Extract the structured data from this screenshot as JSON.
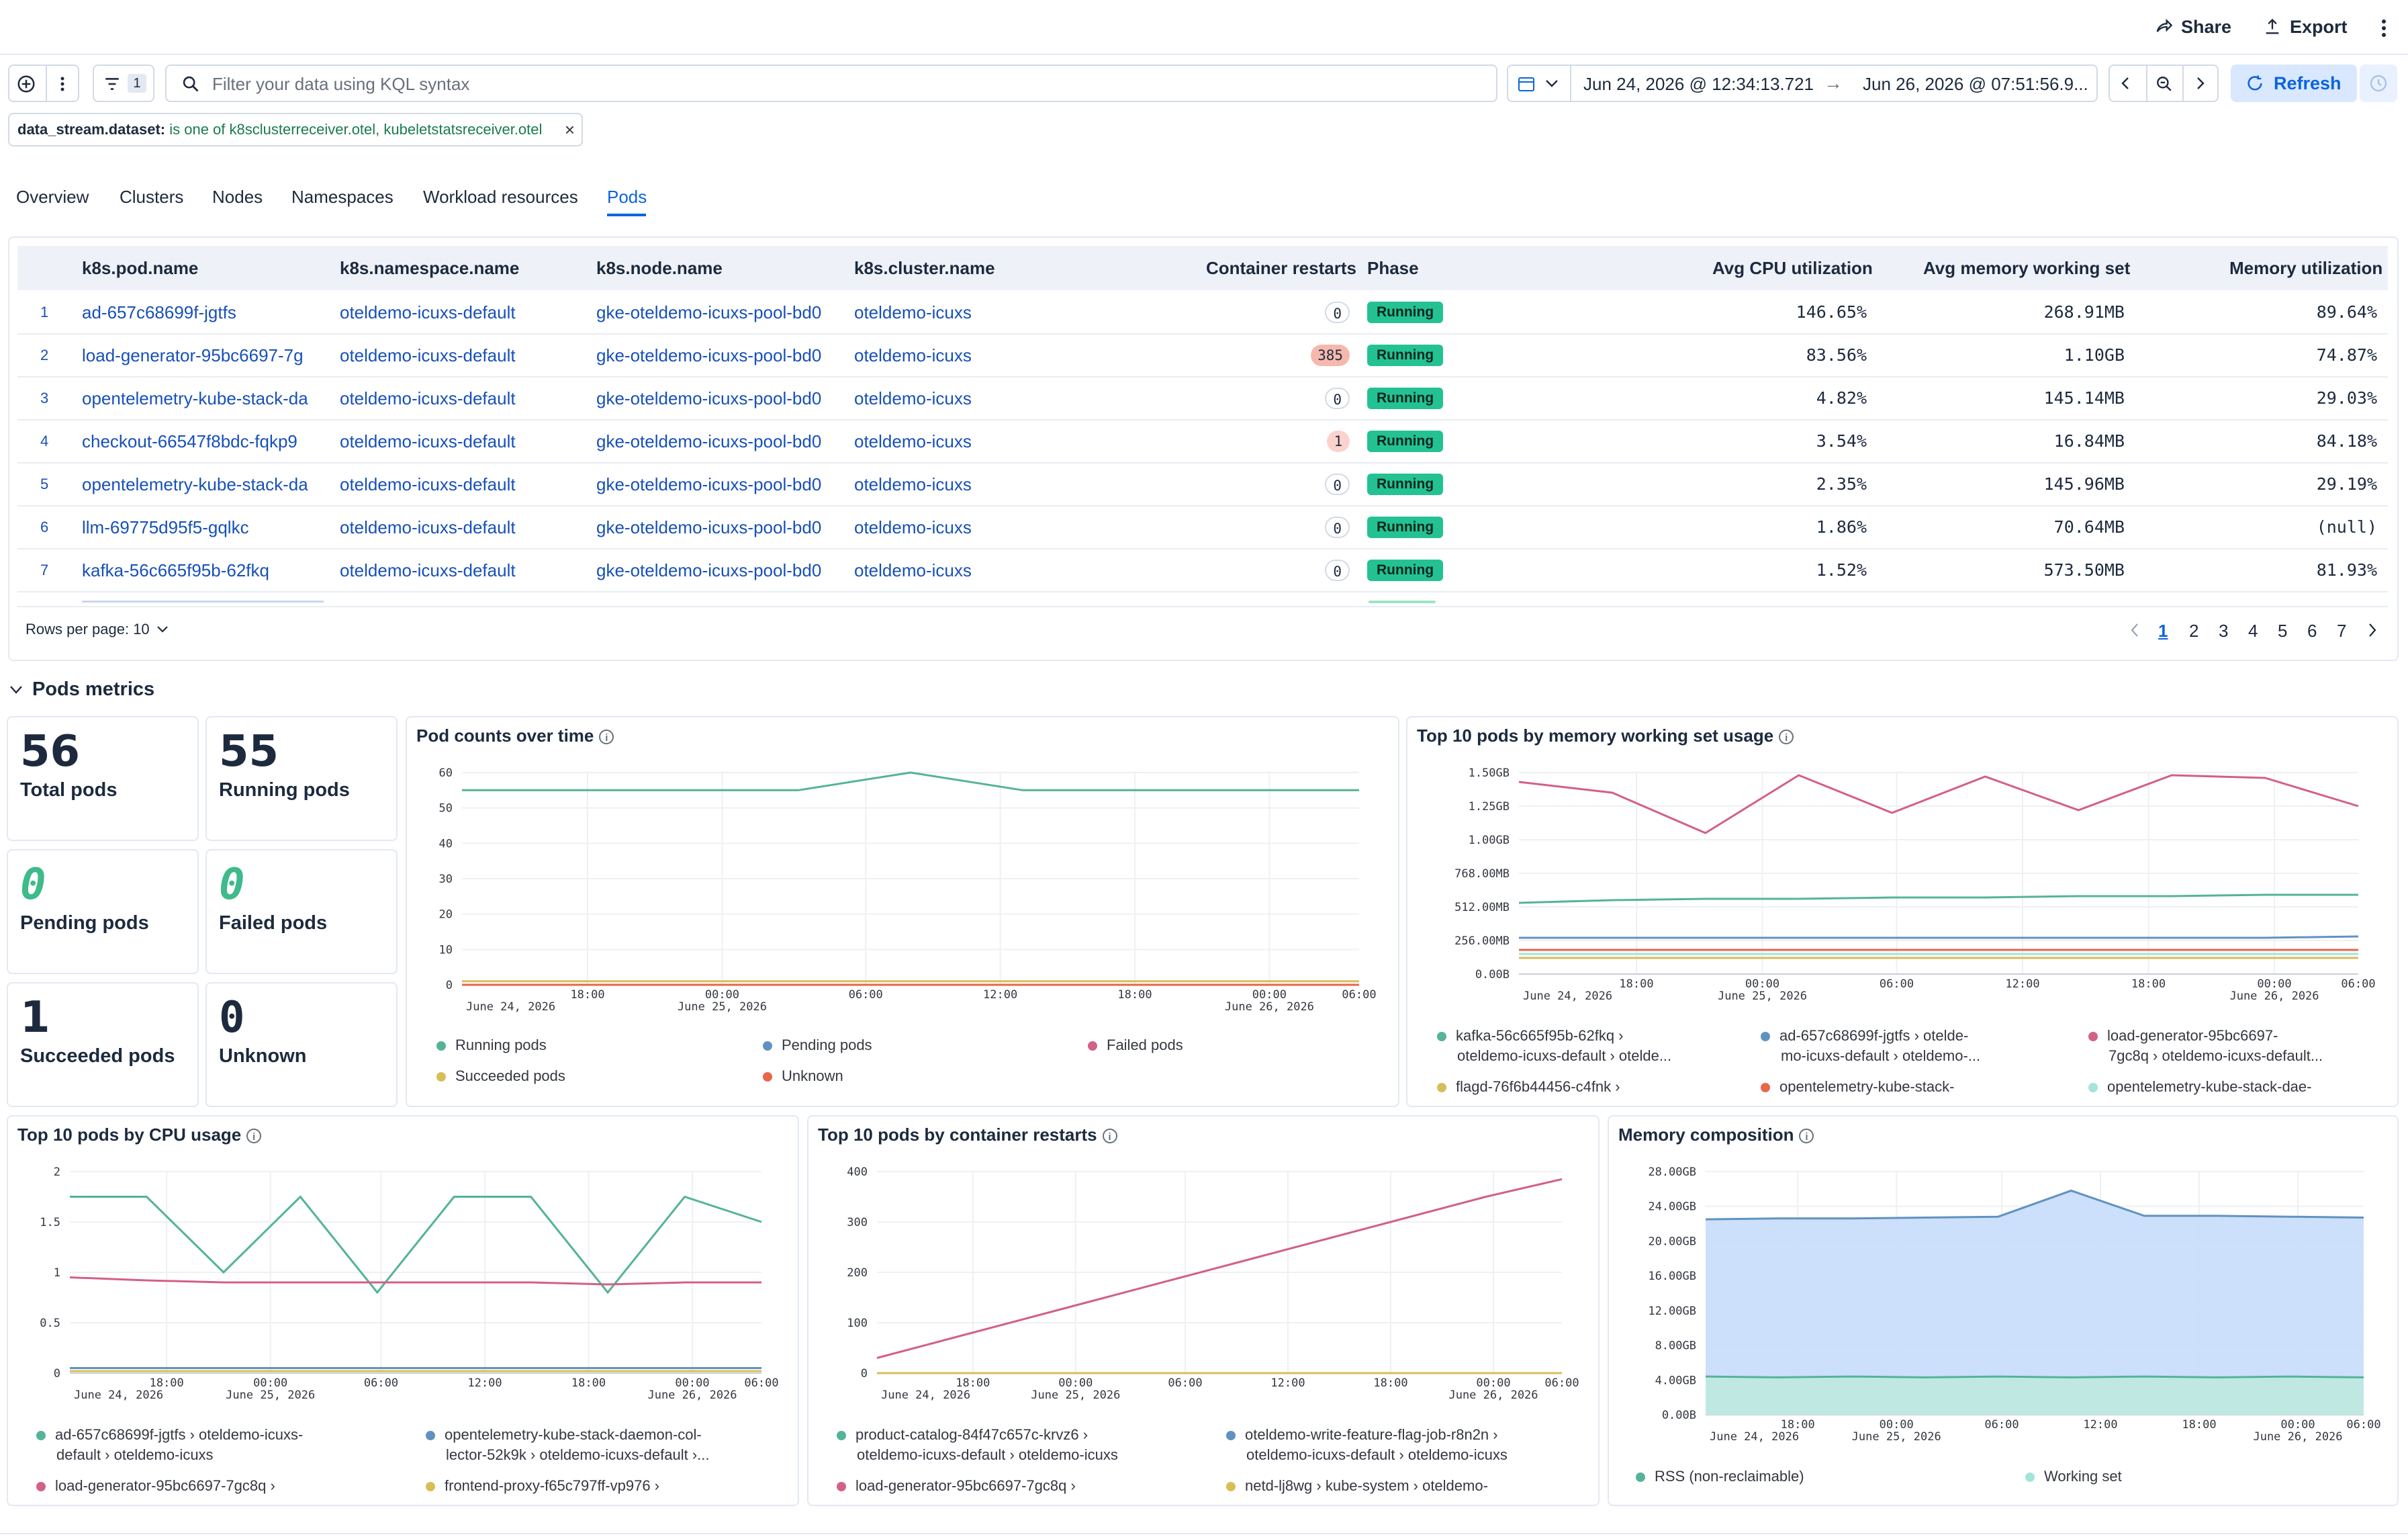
{
  "header": {
    "share": "Share",
    "export": "Export"
  },
  "filterbar": {
    "filter_count": "1",
    "search_placeholder": "Filter your data using KQL syntax",
    "date_start": "Jun 24, 2026 @ 12:34:13.721",
    "date_end": "Jun 26, 2026 @ 07:51:56.9...",
    "refresh": "Refresh",
    "pill_field": "data_stream.dataset:",
    "pill_value": "is one of k8sclusterreceiver.otel, kubeletstatsreceiver.otel"
  },
  "tabs": [
    "Overview",
    "Clusters",
    "Nodes",
    "Namespaces",
    "Workload resources",
    "Pods"
  ],
  "table": {
    "columns": [
      "k8s.pod.name",
      "k8s.namespace.name",
      "k8s.node.name",
      "k8s.cluster.name",
      "Container restarts",
      "Phase",
      "Avg CPU utilization",
      "Avg memory working set",
      "Memory utilization"
    ],
    "rows": [
      {
        "n": "1",
        "pod": "ad-657c68699f-jgtfs",
        "ns": "oteldemo-icuxs-default",
        "node": "gke-oteldemo-icuxs-pool-bd0",
        "cluster": "oteldemo-icuxs",
        "restarts": "0",
        "phase": "Running",
        "cpu": "146.65%",
        "mem": "268.91MB",
        "memu": "89.64%"
      },
      {
        "n": "2",
        "pod": "load-generator-95bc6697-7g",
        "ns": "oteldemo-icuxs-default",
        "node": "gke-oteldemo-icuxs-pool-bd0",
        "cluster": "oteldemo-icuxs",
        "restarts": "385",
        "phase": "Running",
        "cpu": "83.56%",
        "mem": "1.10GB",
        "memu": "74.87%"
      },
      {
        "n": "3",
        "pod": "opentelemetry-kube-stack-da",
        "ns": "oteldemo-icuxs-default",
        "node": "gke-oteldemo-icuxs-pool-bd0",
        "cluster": "oteldemo-icuxs",
        "restarts": "0",
        "phase": "Running",
        "cpu": "4.82%",
        "mem": "145.14MB",
        "memu": "29.03%"
      },
      {
        "n": "4",
        "pod": "checkout-66547f8bdc-fqkp9",
        "ns": "oteldemo-icuxs-default",
        "node": "gke-oteldemo-icuxs-pool-bd0",
        "cluster": "oteldemo-icuxs",
        "restarts": "1",
        "phase": "Running",
        "cpu": "3.54%",
        "mem": "16.84MB",
        "memu": "84.18%"
      },
      {
        "n": "5",
        "pod": "opentelemetry-kube-stack-da",
        "ns": "oteldemo-icuxs-default",
        "node": "gke-oteldemo-icuxs-pool-bd0",
        "cluster": "oteldemo-icuxs",
        "restarts": "0",
        "phase": "Running",
        "cpu": "2.35%",
        "mem": "145.96MB",
        "memu": "29.19%"
      },
      {
        "n": "6",
        "pod": "llm-69775d95f5-gqlkc",
        "ns": "oteldemo-icuxs-default",
        "node": "gke-oteldemo-icuxs-pool-bd0",
        "cluster": "oteldemo-icuxs",
        "restarts": "0",
        "phase": "Running",
        "cpu": "1.86%",
        "mem": "70.64MB",
        "memu": "(null)"
      },
      {
        "n": "7",
        "pod": "kafka-56c665f95b-62fkq",
        "ns": "oteldemo-icuxs-default",
        "node": "gke-oteldemo-icuxs-pool-bd0",
        "cluster": "oteldemo-icuxs",
        "restarts": "0",
        "phase": "Running",
        "cpu": "1.52%",
        "mem": "573.50MB",
        "memu": "81.93%"
      }
    ],
    "rows_per_page": "Rows per page: 10",
    "pages": [
      "1",
      "2",
      "3",
      "4",
      "5",
      "6",
      "7"
    ]
  },
  "metrics": {
    "section_title": "Pods metrics",
    "stats": [
      {
        "value": "56",
        "label": "Total pods"
      },
      {
        "value": "55",
        "label": "Running pods"
      },
      {
        "value": "0",
        "label": "Pending pods"
      },
      {
        "value": "0",
        "label": "Failed pods"
      },
      {
        "value": "1",
        "label": "Succeeded pods"
      },
      {
        "value": "0",
        "label": "Unknown"
      }
    ]
  },
  "x_ticks": [
    "June 24, 2026",
    "18:00",
    "00:00",
    "June 25, 2026",
    "06:00",
    "12:00",
    "18:00",
    "00:00",
    "June 26, 2026",
    "06:00"
  ],
  "chart_data": [
    {
      "type": "line",
      "title": "Pod counts over time",
      "ylim": [
        0,
        60
      ],
      "y_ticks": [
        "0",
        "10",
        "20",
        "30",
        "40",
        "50",
        "60"
      ],
      "x": [
        "June 24 12:34",
        "June 24 18:00",
        "June 25 00:00",
        "June 25 06:00",
        "June 25 10:00",
        "June 25 12:00",
        "June 25 18:00",
        "June 26 00:00",
        "June 26 07:51"
      ],
      "series": [
        {
          "name": "Running pods",
          "color": "#54b399",
          "values": [
            55,
            55,
            55,
            55,
            60,
            55,
            55,
            55,
            55
          ]
        },
        {
          "name": "Pending pods",
          "color": "#6092c0",
          "values": [
            0,
            0,
            0,
            0,
            0,
            0,
            0,
            0,
            0
          ]
        },
        {
          "name": "Failed pods",
          "color": "#d36086",
          "values": [
            0,
            0,
            0,
            0,
            0,
            0,
            0,
            0,
            0
          ]
        },
        {
          "name": "Succeeded pods",
          "color": "#d6bf57",
          "values": [
            1,
            1,
            1,
            1,
            1,
            1,
            1,
            1,
            1
          ]
        },
        {
          "name": "Unknown",
          "color": "#e7664c",
          "values": [
            0,
            0,
            0,
            0,
            0,
            0,
            0,
            0,
            0
          ]
        }
      ],
      "legend": [
        "Running pods",
        "Pending pods",
        "Failed pods",
        "Succeeded pods",
        "Unknown"
      ]
    },
    {
      "type": "line",
      "title": "Top 10 pods by memory working set usage",
      "y_ticks": [
        "0.00B",
        "256.00MB",
        "512.00MB",
        "768.00MB",
        "1.00GB",
        "1.25GB",
        "1.50GB"
      ],
      "series": [
        {
          "name": "kafka-56c665f95b-62fkq › oteldemo-icuxs-default › otelde...",
          "color": "#54b399",
          "values": [
            0.53,
            0.55,
            0.56,
            0.56,
            0.57,
            0.57,
            0.58,
            0.58,
            0.59,
            0.59
          ]
        },
        {
          "name": "ad-657c68699f-jgtfs › oteldemo-icuxs-default › oteldemo-...",
          "color": "#6092c0",
          "values": [
            0.27,
            0.27,
            0.27,
            0.27,
            0.27,
            0.27,
            0.27,
            0.27,
            0.27,
            0.28
          ]
        },
        {
          "name": "load-generator-95bc6697-7gc8q › oteldemo-icuxs-default...",
          "color": "#d36086",
          "values": [
            1.43,
            1.35,
            1.05,
            1.48,
            1.2,
            1.47,
            1.22,
            1.48,
            1.46,
            1.25
          ]
        },
        {
          "name": "flagd-76f6b44456-c4fnk ›",
          "color": "#d6bf57",
          "values": [
            0.12,
            0.12,
            0.12,
            0.12,
            0.12,
            0.12,
            0.12,
            0.12,
            0.12,
            0.12
          ]
        },
        {
          "name": "opentelemetry-kube-stack-",
          "color": "#e7664c",
          "values": [
            0.18,
            0.18,
            0.18,
            0.18,
            0.18,
            0.18,
            0.18,
            0.18,
            0.18,
            0.18
          ]
        },
        {
          "name": "opentelemetry-kube-stack-dae-",
          "color": "#a3e5d8",
          "values": [
            0.15,
            0.15,
            0.15,
            0.15,
            0.15,
            0.15,
            0.15,
            0.15,
            0.15,
            0.15
          ]
        }
      ],
      "legend": [
        "kafka-56c665f95b-62fkq ›",
        "oteldemo-icuxs-default › otelde...",
        "ad-657c68699f-jgtfs › otelde-",
        "mo-icuxs-default › oteldemo-...",
        "load-generator-95bc6697-",
        "7gc8q › oteldemo-icuxs-default...",
        "flagd-76f6b44456-c4fnk ›",
        "opentelemetry-kube-stack-",
        "opentelemetry-kube-stack-dae-"
      ]
    },
    {
      "type": "line",
      "title": "Top 10 pods by CPU usage",
      "ylim": [
        0,
        2
      ],
      "y_ticks": [
        "0",
        "0.5",
        "1",
        "1.5",
        "2"
      ],
      "series": [
        {
          "name": "ad-657c68699f-jgtfs › oteldemo-icuxs-default › oteldemo-icuxs",
          "color": "#54b399",
          "values": [
            1.75,
            1.75,
            1.0,
            1.75,
            0.8,
            1.75,
            1.75,
            0.8,
            1.75,
            1.5
          ]
        },
        {
          "name": "opentelemetry-kube-stack-daemon-collector-52k9k › oteldemo-icuxs-default ›...",
          "color": "#6092c0",
          "values": [
            0.05,
            0.05,
            0.05,
            0.05,
            0.05,
            0.05,
            0.05,
            0.05,
            0.05,
            0.05
          ]
        },
        {
          "name": "load-generator-95bc6697-7gc8q ›",
          "color": "#d36086",
          "values": [
            0.95,
            0.92,
            0.9,
            0.9,
            0.9,
            0.9,
            0.9,
            0.88,
            0.9,
            0.9
          ]
        },
        {
          "name": "frontend-proxy-f65c797ff-vp976 ›",
          "color": "#d6bf57",
          "values": [
            0.02,
            0.02,
            0.02,
            0.02,
            0.02,
            0.02,
            0.02,
            0.02,
            0.02,
            0.02
          ]
        }
      ],
      "legend": [
        "ad-657c68699f-jgtfs › oteldemo-icuxs-",
        "default › oteldemo-icuxs",
        "opentelemetry-kube-stack-daemon-col-",
        "lector-52k9k › oteldemo-icuxs-default ›...",
        "load-generator-95bc6697-7gc8q ›",
        "frontend-proxy-f65c797ff-vp976 ›"
      ]
    },
    {
      "type": "line",
      "title": "Top 10 pods by container restarts",
      "ylim": [
        0,
        400
      ],
      "y_ticks": [
        "0",
        "100",
        "200",
        "300",
        "400"
      ],
      "series": [
        {
          "name": "product-catalog-84f47c657c-krvz6 › oteldemo-icuxs-default › oteldemo-icuxs",
          "color": "#54b399",
          "values": [
            0,
            0,
            0,
            0,
            0,
            0,
            0,
            0,
            0,
            0
          ]
        },
        {
          "name": "oteldemo-write-feature-flag-job-r8n2n › oteldemo-icuxs-default › oteldemo-icuxs",
          "color": "#6092c0",
          "values": [
            0,
            0,
            0,
            0,
            0,
            0,
            0,
            0,
            0,
            0
          ]
        },
        {
          "name": "load-generator-95bc6697-7gc8q ›",
          "color": "#d36086",
          "values": [
            30,
            70,
            110,
            150,
            190,
            230,
            270,
            310,
            350,
            385
          ]
        },
        {
          "name": "netd-lj8wg › kube-system › oteldemo-",
          "color": "#d6bf57",
          "values": [
            0,
            0,
            0,
            0,
            0,
            0,
            0,
            0,
            0,
            0
          ]
        }
      ],
      "legend": [
        "product-catalog-84f47c657c-krvz6 ›",
        "oteldemo-icuxs-default › oteldemo-icuxs",
        "oteldemo-write-feature-flag-job-r8n2n ›",
        "oteldemo-icuxs-default › oteldemo-icuxs",
        "load-generator-95bc6697-7gc8q ›",
        "netd-lj8wg › kube-system › oteldemo-"
      ]
    },
    {
      "type": "area",
      "title": "Memory composition",
      "y_ticks": [
        "0.00B",
        "4.00GB",
        "8.00GB",
        "12.00GB",
        "16.00GB",
        "20.00GB",
        "24.00GB",
        "28.00GB"
      ],
      "series": [
        {
          "name": "RSS (non-reclaimable)",
          "color": "#54b399",
          "values": [
            4.4,
            4.3,
            4.4,
            4.3,
            4.4,
            4.3,
            4.4,
            4.3,
            4.4,
            4.3
          ]
        },
        {
          "name": "Working set",
          "color": "#a3e5d8",
          "values": [
            22.5,
            22.6,
            22.6,
            22.7,
            22.8,
            25.8,
            22.9,
            22.9,
            22.8,
            22.7
          ]
        }
      ],
      "legend": [
        "RSS (non-reclaimable)",
        "Working set"
      ]
    }
  ]
}
